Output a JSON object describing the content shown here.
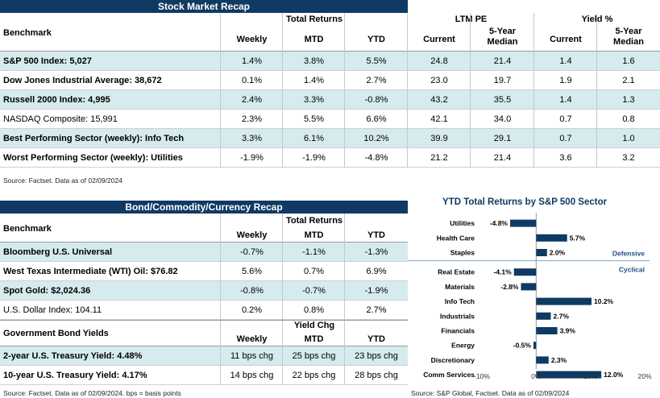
{
  "stock": {
    "title": "Stock Market Recap",
    "benchmark_label": "Benchmark",
    "group_total": "Total Returns",
    "group_pe": "LTM PE",
    "group_yield": "Yield %",
    "cols": [
      "Weekly",
      "MTD",
      "YTD",
      "Current",
      "5-Year Median",
      "Current",
      "5-Year Median"
    ],
    "col_5yr_line1": "5-Year",
    "col_5yr_line2": "Median",
    "rows": [
      {
        "name": "S&P 500 Index: 5,027",
        "bold": true,
        "alt": true,
        "vals": [
          "1.4%",
          "3.8%",
          "5.5%",
          "24.8",
          "21.4",
          "1.4",
          "1.6"
        ]
      },
      {
        "name": "Dow Jones Industrial Average: 38,672",
        "bold": true,
        "alt": false,
        "vals": [
          "0.1%",
          "1.4%",
          "2.7%",
          "23.0",
          "19.7",
          "1.9",
          "2.1"
        ]
      },
      {
        "name": "Russell 2000 Index: 4,995",
        "bold": true,
        "alt": true,
        "vals": [
          "2.4%",
          "3.3%",
          "-0.8%",
          "43.2",
          "35.5",
          "1.4",
          "1.3"
        ]
      },
      {
        "name": "NASDAQ Composite: 15,991",
        "bold": false,
        "alt": false,
        "vals": [
          "2.3%",
          "5.5%",
          "6.6%",
          "42.1",
          "34.0",
          "0.7",
          "0.8"
        ]
      },
      {
        "name": "Best Performing Sector (weekly): Info Tech",
        "bold": true,
        "alt": true,
        "vals": [
          "3.3%",
          "6.1%",
          "10.2%",
          "39.9",
          "29.1",
          "0.7",
          "1.0"
        ]
      },
      {
        "name": "Worst Performing Sector (weekly): Utilities",
        "bold": true,
        "alt": false,
        "vals": [
          "-1.9%",
          "-1.9%",
          "-4.8%",
          "21.2",
          "21.4",
          "3.6",
          "3.2"
        ]
      }
    ],
    "source": "Source: Factset. Data as of 02/09/2024"
  },
  "bond": {
    "title": "Bond/Commodity/Currency Recap",
    "benchmark_label": "Benchmark",
    "group_total": "Total Returns",
    "cols": [
      "Weekly",
      "MTD",
      "YTD"
    ],
    "rows": [
      {
        "name": "Bloomberg U.S. Universal",
        "bold": true,
        "alt": true,
        "vals": [
          "-0.7%",
          "-1.1%",
          "-1.3%"
        ]
      },
      {
        "name": "West Texas Intermediate (WTI) Oil: $76.82",
        "bold": true,
        "alt": false,
        "vals": [
          "5.6%",
          "0.7%",
          "6.9%"
        ]
      },
      {
        "name": "Spot Gold: $2,024.36",
        "bold": true,
        "alt": true,
        "vals": [
          "-0.8%",
          "-0.7%",
          "-1.9%"
        ]
      },
      {
        "name": "U.S. Dollar Index: 104.11",
        "bold": false,
        "alt": false,
        "vals": [
          "0.2%",
          "0.8%",
          "2.7%"
        ]
      }
    ],
    "gov_label": "Government Bond Yields",
    "group_yield": "Yield Chg",
    "gov_cols": [
      "Weekly",
      "MTD",
      "YTD"
    ],
    "gov_rows": [
      {
        "name": "2-year U.S. Treasury Yield: 4.48%",
        "bold": true,
        "alt": true,
        "vals": [
          "11 bps chg",
          "25 bps chg",
          "23 bps chg"
        ]
      },
      {
        "name": "10-year U.S. Treasury Yield: 4.17%",
        "bold": true,
        "alt": false,
        "vals": [
          "14 bps chg",
          "22 bps chg",
          "28 bps chg"
        ]
      }
    ],
    "source": "Source: Factset. Data as of 02/09/2024. bps = basis points"
  },
  "chart_data": {
    "type": "bar",
    "orientation": "horizontal",
    "title": "YTD Total Returns by S&P 500 Sector",
    "categories": [
      "Utilities",
      "Health Care",
      "Staples",
      "Real Estate",
      "Materials",
      "Info Tech",
      "Industrials",
      "Financials",
      "Energy",
      "Discretionary",
      "Comm Services"
    ],
    "values": [
      -4.8,
      5.7,
      2.0,
      -4.1,
      -2.8,
      10.2,
      2.7,
      3.9,
      -0.5,
      2.3,
      12.0
    ],
    "labels": [
      "-4.8%",
      "5.7%",
      "2.0%",
      "-4.1%",
      "-2.8%",
      "10.2%",
      "2.7%",
      "3.9%",
      "-0.5%",
      "2.3%",
      "12.0%"
    ],
    "groups": [
      {
        "name": "Defensive",
        "count": 3
      },
      {
        "name": "Cyclical",
        "count": 8
      }
    ],
    "xlim": [
      -10,
      20
    ],
    "xticks": [
      "-10%",
      "0%",
      "10%",
      "20%"
    ],
    "xtick_values": [
      -10,
      0,
      10,
      20
    ],
    "bar_color": "#0f3a63",
    "group_color": "#1f4f82",
    "source": "Source: S&P Global, Factset. Data as of 02/09/2024"
  }
}
